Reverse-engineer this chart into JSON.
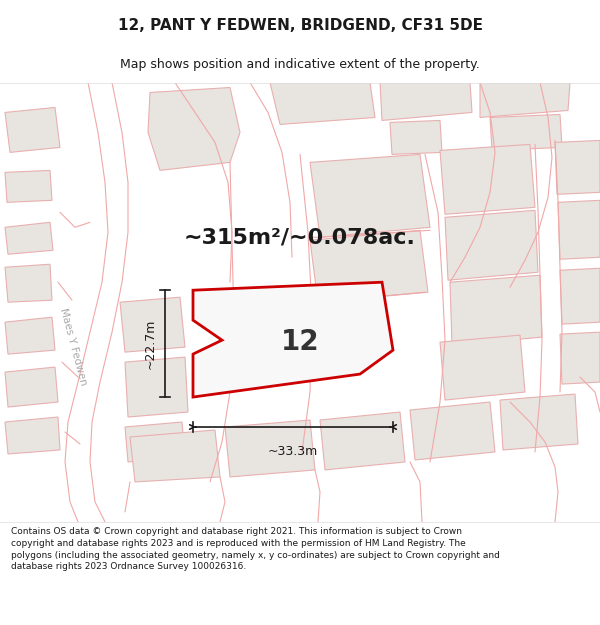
{
  "title": "12, PANT Y FEDWEN, BRIDGEND, CF31 5DE",
  "subtitle": "Map shows position and indicative extent of the property.",
  "area_text": "~315m²/~0.078ac.",
  "plot_number": "12",
  "dim_width": "~33.3m",
  "dim_height": "~22.7m",
  "street_label": "Maes Y Fedwen",
  "footer": "Contains OS data © Crown copyright and database right 2021. This information is subject to Crown copyright and database rights 2023 and is reproduced with the permission of HM Land Registry. The polygons (including the associated geometry, namely x, y co-ordinates) are subject to Crown copyright and database rights 2023 Ordnance Survey 100026316.",
  "bg_color": "#f5f3f0",
  "building_fill": "#e8e4df",
  "building_edge": "#e8b0b0",
  "plot_fill": "#ffffff",
  "plot_edge": "#cc0000",
  "road_color": "#ffffff",
  "figsize": [
    6.0,
    6.25
  ],
  "title_fontsize": 11,
  "subtitle_fontsize": 9
}
